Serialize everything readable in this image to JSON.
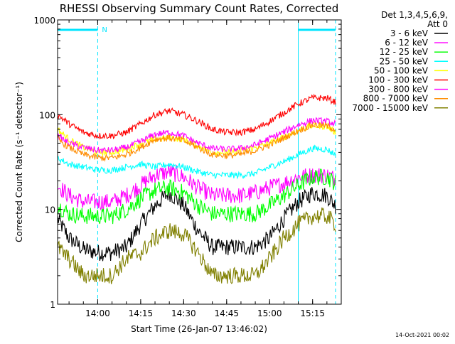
{
  "window": {
    "stamp": "14-Oct-2021 00:02"
  },
  "chart_data": {
    "type": "line",
    "title": "RHESSI Observing Summary Count Rates, Corrected",
    "xlabel": "Start Time (26-Jan-07 13:46:02)",
    "ylabel": "Corrected Count Rate (s⁻¹ detector⁻¹)",
    "yscale": "log",
    "ylim": [
      1,
      1000
    ],
    "yticks": [
      {
        "v": 1,
        "label": "1"
      },
      {
        "v": 10,
        "label": "10"
      },
      {
        "v": 100,
        "label": "100"
      },
      {
        "v": 1000,
        "label": "1000"
      }
    ],
    "xlim": [
      "13:46",
      "15:25"
    ],
    "xticks": [
      "14:00",
      "14:15",
      "14:30",
      "14:45",
      "15:00",
      "15:15"
    ],
    "legend_title": [
      "Det 1,3,4,5,6,9,",
      "Att 0"
    ],
    "legend_position": "right",
    "markers": {
      "solid_lines": [
        "13:46",
        "15:10"
      ],
      "dashed_lines": [
        "14:00",
        "15:23"
      ],
      "bars": [
        [
          "13:46",
          "14:00"
        ],
        [
          "15:10",
          "15:23"
        ]
      ],
      "label": "N",
      "color": "#00e5ff"
    },
    "times": [
      "13:46",
      "13:50",
      "13:55",
      "14:00",
      "14:05",
      "14:10",
      "14:15",
      "14:20",
      "14:25",
      "14:30",
      "14:35",
      "14:40",
      "14:45",
      "14:50",
      "14:55",
      "15:00",
      "15:05",
      "15:10",
      "15:15",
      "15:20",
      "15:23"
    ],
    "series": [
      {
        "name": "3 - 6 keV",
        "color": "#000000",
        "values": [
          8,
          5,
          3.8,
          3.5,
          3.5,
          4,
          7,
          11,
          15,
          11,
          6,
          4,
          4,
          4,
          4,
          5,
          8,
          12,
          15,
          14,
          11
        ]
      },
      {
        "name": "6 - 12 keV",
        "color": "#ff00ff",
        "values": [
          18,
          14,
          12,
          12,
          12,
          14,
          18,
          23,
          25,
          22,
          17,
          14,
          14,
          14,
          15,
          17,
          19,
          22,
          23,
          23,
          21
        ]
      },
      {
        "name": "12 - 25 keV",
        "color": "#00ff00",
        "values": [
          11,
          9,
          8.5,
          8.5,
          8.5,
          10,
          13,
          16,
          17,
          15,
          11,
          9,
          9,
          9,
          9,
          11,
          14,
          18,
          22,
          22,
          19
        ]
      },
      {
        "name": "25 - 50 keV",
        "color": "#00ffff",
        "values": [
          35,
          30,
          28,
          26,
          26,
          28,
          30,
          28,
          30,
          28,
          25,
          23,
          23,
          23,
          24,
          28,
          32,
          38,
          44,
          43,
          38
        ]
      },
      {
        "name": "50 - 100 keV",
        "color": "#ffff00",
        "values": [
          70,
          55,
          45,
          40,
          40,
          43,
          50,
          55,
          57,
          55,
          47,
          40,
          40,
          42,
          45,
          50,
          58,
          68,
          77,
          75,
          65
        ]
      },
      {
        "name": "100 - 300 keV",
        "color": "#ff0000",
        "values": [
          100,
          80,
          65,
          60,
          60,
          65,
          80,
          100,
          110,
          100,
          85,
          70,
          65,
          65,
          70,
          85,
          105,
          130,
          150,
          150,
          135
        ]
      },
      {
        "name": "300 - 800 keV",
        "color": "#ff00ff",
        "values": [
          60,
          50,
          45,
          42,
          42,
          45,
          52,
          62,
          65,
          60,
          50,
          44,
          43,
          44,
          48,
          56,
          66,
          78,
          87,
          85,
          80
        ]
      },
      {
        "name": "800 - 7000 keV",
        "color": "#ff8c00",
        "values": [
          55,
          45,
          38,
          35,
          35,
          38,
          45,
          55,
          57,
          53,
          45,
          38,
          37,
          38,
          42,
          48,
          57,
          68,
          78,
          76,
          70
        ]
      },
      {
        "name": "7000 - 15000 keV",
        "color": "#808000",
        "values": [
          4,
          3,
          2,
          2,
          2,
          3,
          3.5,
          5,
          6,
          5.5,
          3.5,
          2,
          2,
          2,
          2,
          3,
          5,
          7,
          8.5,
          8.5,
          7
        ]
      }
    ]
  }
}
